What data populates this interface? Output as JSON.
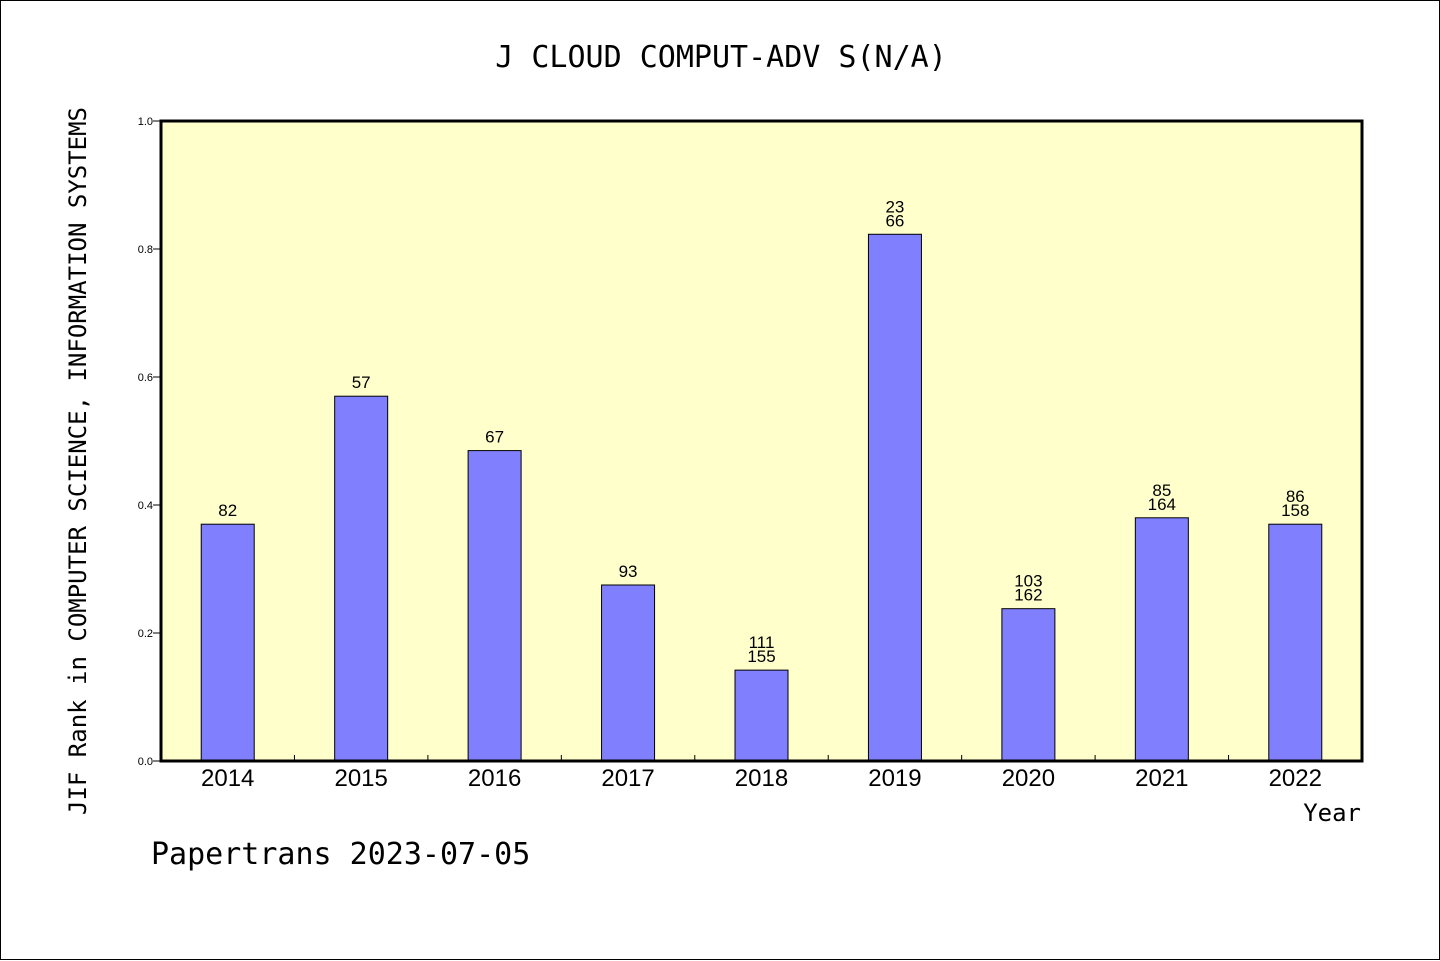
{
  "chart_data": {
    "type": "bar",
    "title": "J CLOUD COMPUT-ADV S(N/A)",
    "xlabel": "Year",
    "ylabel": "JIF Rank in COMPUTER SCIENCE, INFORMATION SYSTEMS",
    "categories": [
      "2014",
      "2015",
      "2016",
      "2017",
      "2018",
      "2019",
      "2020",
      "2021",
      "2022"
    ],
    "values": [
      0.37,
      0.57,
      0.485,
      0.275,
      0.142,
      0.823,
      0.238,
      0.38,
      0.37
    ],
    "data_labels": [
      [
        "82"
      ],
      [
        "57"
      ],
      [
        "67"
      ],
      [
        "93"
      ],
      [
        "111",
        "155"
      ],
      [
        "23",
        "66"
      ],
      [
        "103",
        "162"
      ],
      [
        "85",
        "164"
      ],
      [
        "86",
        "158"
      ]
    ],
    "ylim": [
      0,
      1.0
    ],
    "yticks": [
      "0.0",
      "0.2",
      "0.4",
      "0.6",
      "0.8",
      "1.0"
    ],
    "grid": false,
    "colors": {
      "bar_fill": "#8080ff",
      "plot_background": "#ffffcc",
      "axes": "#000000"
    }
  },
  "footer": "Papertrans 2023-07-05"
}
